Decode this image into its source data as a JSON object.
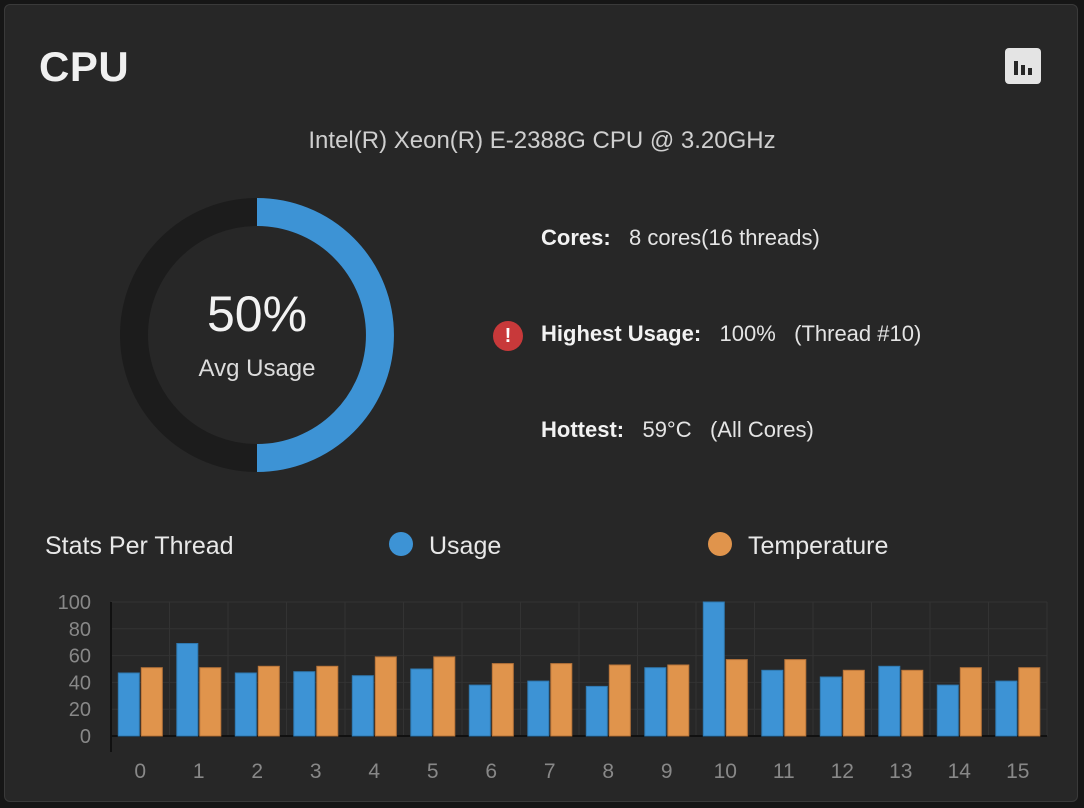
{
  "header": {
    "title": "CPU",
    "chart_button_icon": "bar-chart-icon"
  },
  "cpu_model": "Intel(R) Xeon(R) E-2388G CPU @ 3.20GHz",
  "gauge": {
    "value_text": "50%",
    "label": "Avg Usage",
    "value": 50,
    "color": "#3d93d5",
    "track_color": "#1c1c1c"
  },
  "info": {
    "cores_label": "Cores:",
    "cores_value": "8 cores(16 threads)",
    "highest_label": "Highest Usage:",
    "highest_value": "100%",
    "highest_thread": "(Thread #10)",
    "highest_icon": "alert-circle-icon",
    "hottest_label": "Hottest:",
    "hottest_value": "59°C",
    "hottest_scope": "(All Cores)"
  },
  "stats": {
    "title": "Stats Per Thread",
    "legend_usage": "Usage",
    "legend_temperature": "Temperature",
    "usage_color": "#3d93d5",
    "temperature_color": "#e0944c"
  },
  "chart_data": {
    "type": "bar",
    "categories": [
      "0",
      "1",
      "2",
      "3",
      "4",
      "5",
      "6",
      "7",
      "8",
      "9",
      "10",
      "11",
      "12",
      "13",
      "14",
      "15"
    ],
    "series": [
      {
        "name": "Usage",
        "values": [
          47,
          69,
          47,
          48,
          45,
          50,
          38,
          41,
          37,
          51,
          100,
          49,
          44,
          52,
          38,
          41
        ]
      },
      {
        "name": "Temperature",
        "values": [
          51,
          51,
          52,
          52,
          59,
          59,
          54,
          54,
          53,
          53,
          57,
          57,
          49,
          49,
          51,
          51
        ]
      }
    ],
    "yticks": [
      0,
      20,
      40,
      60,
      80,
      100
    ],
    "ylim": [
      0,
      100
    ],
    "grid": true,
    "legend": "top"
  }
}
